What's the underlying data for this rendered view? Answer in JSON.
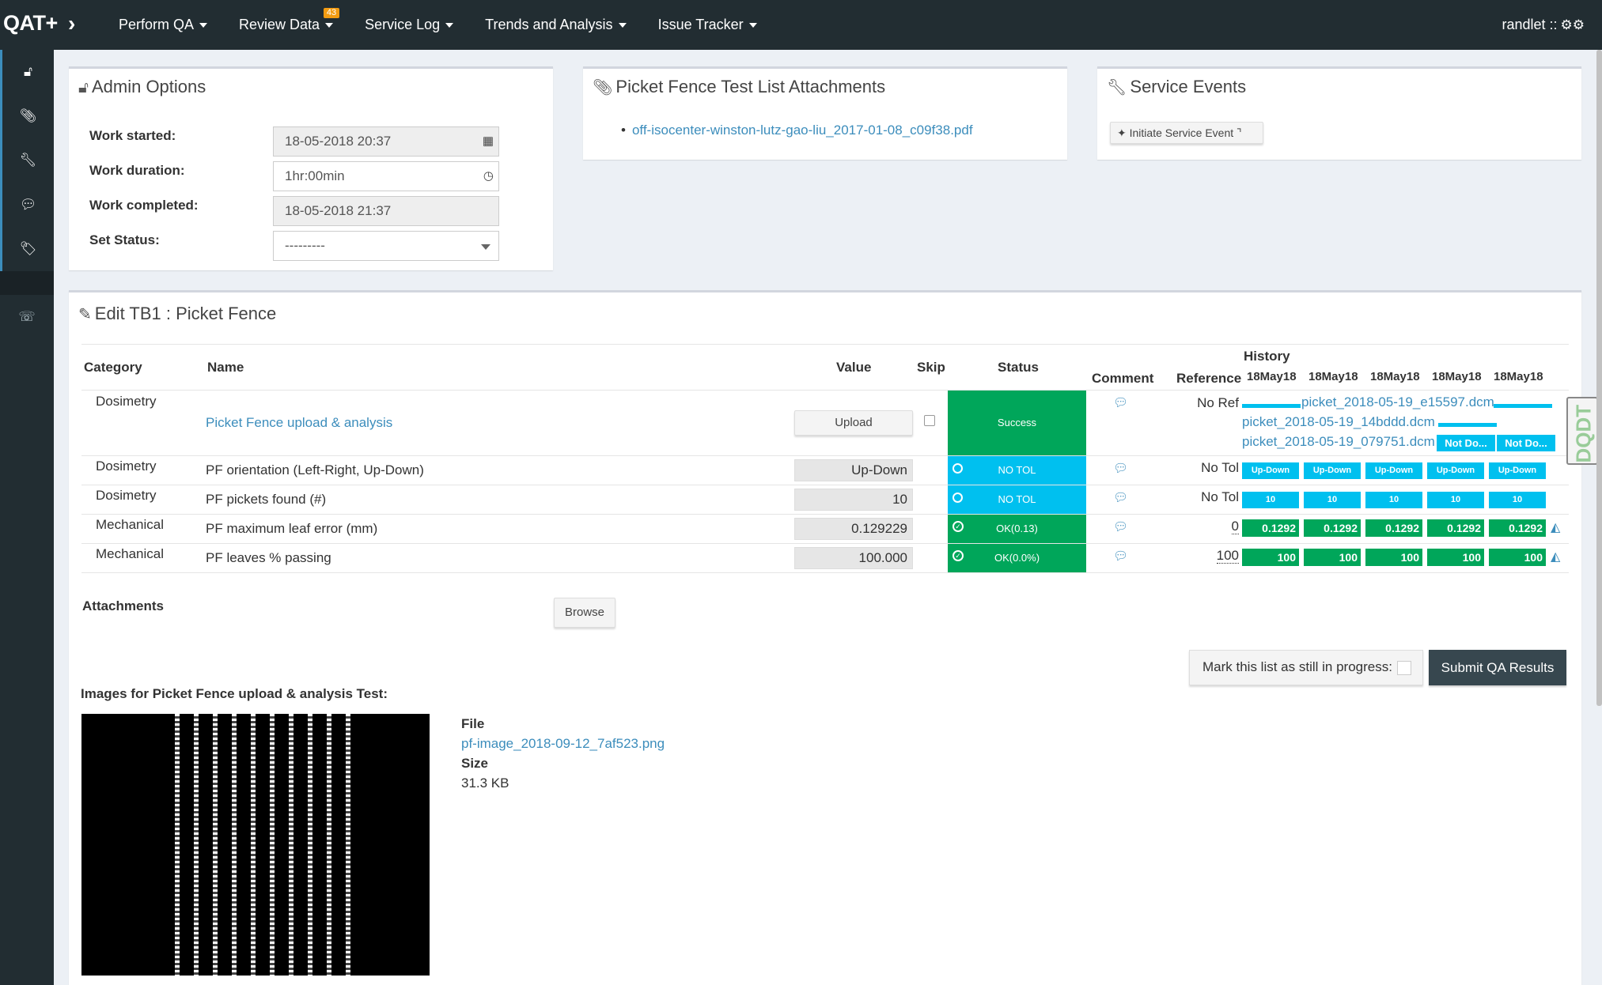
{
  "nav": {
    "brand": "QAT+",
    "toggle_icon": "chevron-right-icon",
    "items": [
      {
        "label": "Perform QA"
      },
      {
        "label": "Review Data",
        "badge": "43"
      },
      {
        "label": "Service Log"
      },
      {
        "label": "Trends and Analysis"
      },
      {
        "label": "Issue Tracker"
      }
    ],
    "user": "randlet ::",
    "user_icon": "gears-icon"
  },
  "sidebar": {
    "items": [
      {
        "icon": "unlock-icon",
        "glyph": "🔓"
      },
      {
        "icon": "paperclip-icon",
        "glyph": "📎"
      },
      {
        "icon": "wrench-icon",
        "glyph": "🔧"
      },
      {
        "icon": "comment-icon",
        "glyph": "💬"
      },
      {
        "icon": "tags-icon",
        "glyph": "🏷"
      },
      {
        "icon": "phone-icon",
        "glyph": "📞"
      }
    ]
  },
  "admin": {
    "title": "Admin Options",
    "work_started_label": "Work started:",
    "work_started_value": "18-05-2018 20:37",
    "work_duration_label": "Work duration:",
    "work_duration_value": "1hr:00min",
    "work_completed_label": "Work completed:",
    "work_completed_value": "18-05-2018 21:37",
    "status_label": "Set Status:",
    "status_value": "---------"
  },
  "attachments_box": {
    "title": "Picket Fence Test List Attachments",
    "files": [
      "off-isocenter-winston-lutz-gao-liu_2017-01-08_c09f38.pdf"
    ]
  },
  "service_events": {
    "title": "Service Events",
    "button": "Initiate Service Event"
  },
  "edit": {
    "title": "Edit TB1 : Picket Fence",
    "headers": {
      "category": "Category",
      "name": "Name",
      "value": "Value",
      "skip": "Skip",
      "status": "Status",
      "comment": "Comment",
      "reference": "Reference",
      "history": "History",
      "dates": [
        "18May18",
        "18May18",
        "18May18",
        "18May18",
        "18May18"
      ]
    },
    "rows": [
      {
        "category": "Dosimetry",
        "name": "Picket Fence upload & analysis",
        "value": "Upload",
        "status": "Success",
        "reference": "No Ref",
        "history_files": [
          "picket_2018-05-19_e15597.dcm",
          "picket_2018-05-19_14bddd.dcm",
          "picket_2018-05-19_079751.dcm"
        ],
        "history_extra": [
          "Not Do...",
          "Not Do..."
        ]
      },
      {
        "category": "Dosimetry",
        "name": "PF orientation (Left-Right, Up-Down)",
        "value": "Up-Down",
        "status": "NO TOL",
        "reference": "No Tol",
        "history": [
          "Up-Down",
          "Up-Down",
          "Up-Down",
          "Up-Down",
          "Up-Down"
        ]
      },
      {
        "category": "Dosimetry",
        "name": "PF pickets found (#)",
        "value": "10",
        "status": "NO TOL",
        "reference": "No Tol",
        "history": [
          "10",
          "10",
          "10",
          "10",
          "10"
        ]
      },
      {
        "category": "Mechanical",
        "name": "PF maximum leaf error (mm)",
        "value": "0.129229",
        "status": "OK(0.13)",
        "reference": "0",
        "history": [
          "0.1292",
          "0.1292",
          "0.1292",
          "0.1292",
          "0.1292"
        ]
      },
      {
        "category": "Mechanical",
        "name": "PF leaves % passing",
        "value": "100.000",
        "status": "OK(0.0%)",
        "reference": "100",
        "history": [
          "100",
          "100",
          "100",
          "100",
          "100"
        ]
      }
    ],
    "attachments_label": "Attachments",
    "browse_button": "Browse",
    "in_progress_label": "Mark this list as still in progress:",
    "submit_button": "Submit QA Results",
    "images_heading": "Images for Picket Fence upload & analysis Test:",
    "file_label": "File",
    "file_name": "pf-image_2018-09-12_7af523.png",
    "size_label": "Size",
    "size_value": "31.3 KB",
    "dqdt_label": "DQDT"
  },
  "colors": {
    "nav_bg": "#222d32",
    "page_bg": "#ecf0f5",
    "success": "#00a65a",
    "no_tol": "#00c0ef",
    "link": "#3c8dbc",
    "badge": "#f39c12",
    "submit_bg": "#37474f"
  }
}
